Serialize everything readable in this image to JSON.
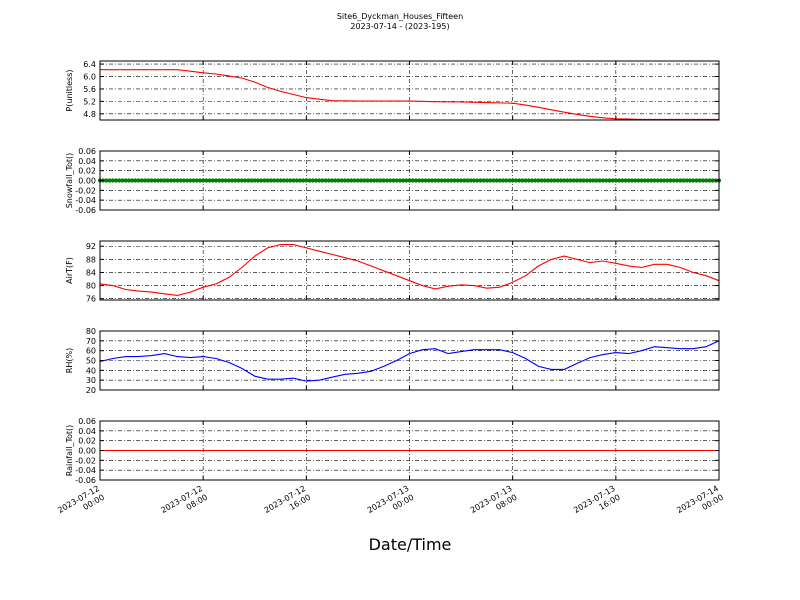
{
  "figure": {
    "title": "Site6_Dyckman_Houses_Fifteen",
    "subtitle": "2023-07-14 - (2023-195)",
    "xlabel": "Date/Time"
  },
  "x_axis": {
    "start": "2023-07-12 00:00",
    "end": "2023-07-14 00:00",
    "tick_values_hours": [
      0,
      8,
      16,
      24,
      32,
      40,
      48
    ],
    "tick_labels": [
      [
        "2023-07-12",
        "00:00"
      ],
      [
        "2023-07-12",
        "08:00"
      ],
      [
        "2023-07-12",
        "16:00"
      ],
      [
        "2023-07-13",
        "00:00"
      ],
      [
        "2023-07-13",
        "08:00"
      ],
      [
        "2023-07-13",
        "16:00"
      ],
      [
        "2023-07-14",
        "00:00"
      ]
    ]
  },
  "colors": {
    "pressure": "#ff0000",
    "snowfall": "#008000",
    "airtemp": "#ff0000",
    "rh": "#0000ff",
    "rainfall": "#ff0000"
  },
  "chart_data": [
    {
      "type": "line",
      "ylabel": "P(unitless)",
      "ylim": [
        4.6,
        6.5
      ],
      "yticks": [
        4.8,
        5.2,
        5.6,
        6.0,
        6.4
      ],
      "ytick_labels": [
        "4.8",
        "5.2",
        "5.6",
        "6.0",
        "6.4"
      ],
      "grid": true,
      "series_color": "pressure",
      "style": "line",
      "x_hours": [
        0,
        2,
        4,
        6,
        7,
        8,
        9,
        10,
        11,
        12,
        13,
        14,
        15,
        16,
        17,
        18,
        20,
        22,
        24,
        26,
        28,
        30,
        32,
        33,
        34,
        35,
        36,
        37,
        38,
        39,
        40,
        41,
        42,
        43,
        44,
        46,
        48
      ],
      "y": [
        6.22,
        6.22,
        6.22,
        6.22,
        6.17,
        6.12,
        6.08,
        6.02,
        5.95,
        5.82,
        5.65,
        5.52,
        5.42,
        5.32,
        5.27,
        5.22,
        5.21,
        5.21,
        5.21,
        5.19,
        5.18,
        5.16,
        5.14,
        5.08,
        5.01,
        4.93,
        4.85,
        4.78,
        4.72,
        4.67,
        4.64,
        4.63,
        4.62,
        4.62,
        4.62,
        4.62,
        4.62
      ]
    },
    {
      "type": "scatter",
      "ylabel": "Snowfall_Tot()",
      "ylim": [
        -0.06,
        0.06
      ],
      "yticks": [
        -0.06,
        -0.04,
        -0.02,
        0.0,
        0.02,
        0.04,
        0.06
      ],
      "ytick_labels": [
        "-0.06",
        "-0.04",
        "-0.02",
        "0.00",
        "0.02",
        "0.04",
        "0.06"
      ],
      "grid": true,
      "series_color": "snowfall",
      "style": "dots",
      "x_hours": [
        0,
        48
      ],
      "y": [
        0,
        0
      ],
      "interval_minutes": 15
    },
    {
      "type": "line",
      "ylabel": "AirT(F)",
      "ylim": [
        75.6,
        93.6
      ],
      "yticks": [
        76,
        80,
        84,
        88,
        92
      ],
      "ytick_labels": [
        "76",
        "80",
        "84",
        "88",
        "92"
      ],
      "grid": true,
      "series_color": "airtemp",
      "style": "line",
      "x_hours": [
        0,
        1,
        2,
        3,
        4,
        5,
        6,
        7,
        8,
        9,
        10,
        11,
        12,
        13,
        14,
        15,
        16,
        17,
        18,
        19,
        20,
        21,
        22,
        23,
        24,
        25,
        26,
        27,
        28,
        29,
        30,
        31,
        32,
        33,
        34,
        35,
        36,
        37,
        38,
        39,
        40,
        41,
        42,
        43,
        44,
        45,
        46,
        47,
        48
      ],
      "y": [
        80.5,
        80.0,
        78.8,
        78.3,
        78.0,
        77.5,
        77.0,
        78.0,
        79.5,
        80.5,
        82.5,
        85.5,
        89.0,
        91.5,
        92.5,
        92.5,
        91.5,
        90.5,
        89.5,
        88.5,
        87.5,
        86.0,
        84.5,
        83.0,
        81.5,
        80.0,
        79.0,
        79.8,
        80.2,
        80.0,
        79.2,
        79.5,
        81.0,
        83.0,
        86.0,
        88.0,
        89.0,
        88.0,
        87.0,
        87.5,
        86.8,
        86.0,
        85.5,
        86.5,
        86.5,
        85.5,
        84.0,
        83.0,
        81.5
      ]
    },
    {
      "type": "line",
      "ylabel": "RH(%)",
      "ylim": [
        20,
        80
      ],
      "yticks": [
        20,
        30,
        40,
        50,
        60,
        70,
        80
      ],
      "ytick_labels": [
        "20",
        "30",
        "40",
        "50",
        "60",
        "70",
        "80"
      ],
      "grid": true,
      "series_color": "rh",
      "style": "line",
      "x_hours": [
        0,
        1,
        2,
        3,
        4,
        5,
        6,
        7,
        8,
        9,
        10,
        11,
        12,
        13,
        14,
        15,
        16,
        17,
        18,
        19,
        20,
        21,
        22,
        23,
        24,
        25,
        26,
        27,
        28,
        29,
        30,
        31,
        32,
        33,
        34,
        35,
        36,
        37,
        38,
        39,
        40,
        41,
        42,
        43,
        44,
        45,
        46,
        47,
        48
      ],
      "y": [
        49,
        52,
        54,
        54,
        55,
        57,
        54,
        53,
        54,
        52,
        48,
        42,
        34,
        31,
        31,
        32,
        29,
        30,
        33,
        36,
        37,
        39,
        44,
        50,
        57,
        61,
        62,
        57,
        59,
        61,
        61,
        61,
        58,
        52,
        44,
        41,
        41,
        47,
        53,
        56,
        58,
        57,
        60,
        64,
        63,
        62,
        62,
        64,
        70
      ]
    },
    {
      "type": "line",
      "ylabel": "Rainfall_Tot()",
      "ylim": [
        -0.06,
        0.06
      ],
      "yticks": [
        -0.06,
        -0.04,
        -0.02,
        0.0,
        0.02,
        0.04,
        0.06
      ],
      "ytick_labels": [
        "-0.06",
        "-0.04",
        "-0.02",
        "0.00",
        "0.02",
        "0.04",
        "0.06"
      ],
      "grid": true,
      "series_color": "rainfall",
      "style": "line",
      "x_hours": [
        0,
        48
      ],
      "y": [
        0,
        0
      ]
    }
  ]
}
